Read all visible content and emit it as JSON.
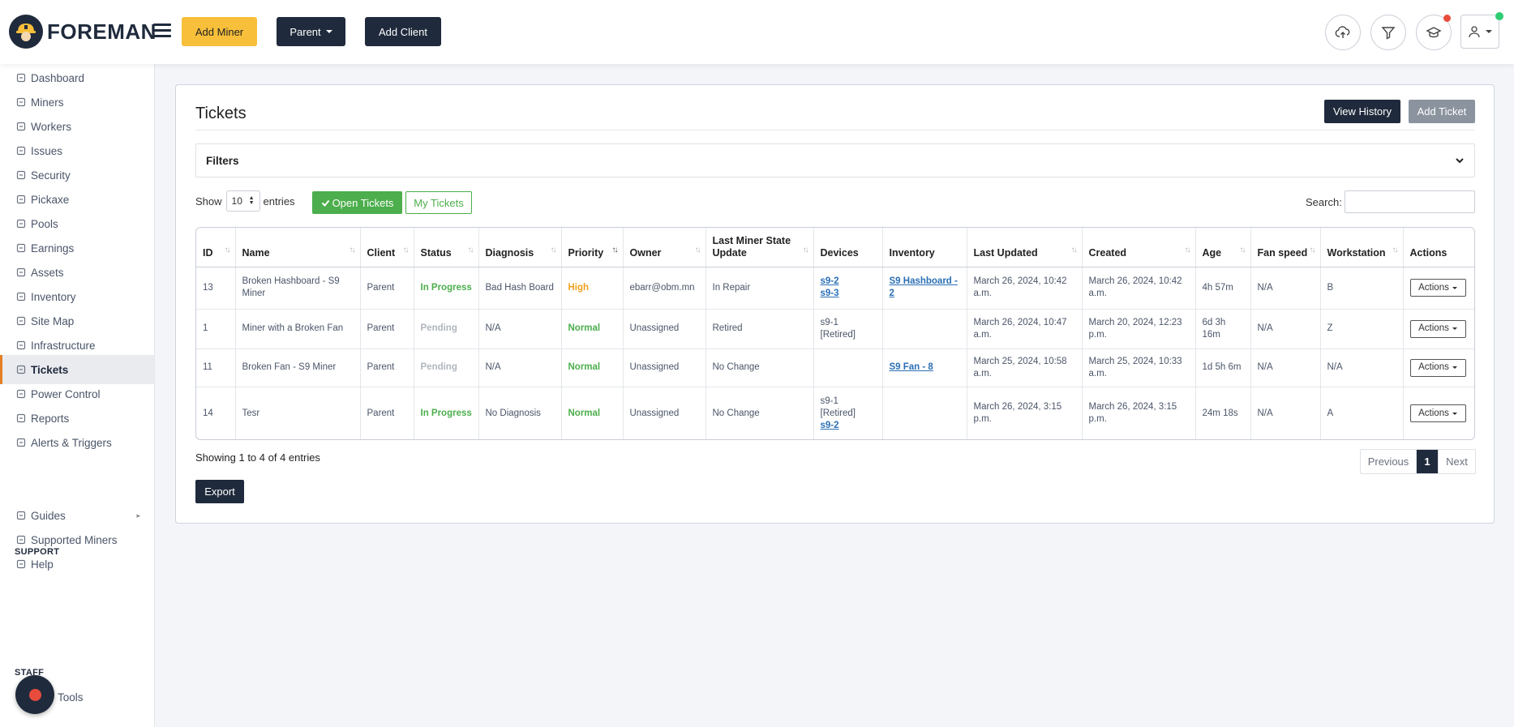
{
  "brand": {
    "name": "FOREMAN"
  },
  "header": {
    "add_miner": "Add Miner",
    "parent": "Parent",
    "add_client": "Add Client"
  },
  "sidebar": {
    "items": [
      {
        "label": "Dashboard",
        "icon": "dashboard-icon"
      },
      {
        "label": "Miners",
        "icon": "miners-icon"
      },
      {
        "label": "Workers",
        "icon": "workers-icon"
      },
      {
        "label": "Issues",
        "icon": "issues-icon"
      },
      {
        "label": "Security",
        "icon": "security-icon"
      },
      {
        "label": "Pickaxe",
        "icon": "pickaxe-icon"
      },
      {
        "label": "Pools",
        "icon": "pools-icon"
      },
      {
        "label": "Earnings",
        "icon": "earnings-icon"
      },
      {
        "label": "Assets",
        "icon": "assets-icon"
      },
      {
        "label": "Inventory",
        "icon": "inventory-icon"
      },
      {
        "label": "Site Map",
        "icon": "site-map-icon"
      },
      {
        "label": "Infrastructure",
        "icon": "infrastructure-icon"
      },
      {
        "label": "Tickets",
        "icon": "tickets-icon",
        "active": true
      },
      {
        "label": "Power Control",
        "icon": "power-icon"
      },
      {
        "label": "Reports",
        "icon": "reports-icon"
      },
      {
        "label": "Alerts & Triggers",
        "icon": "alerts-icon"
      }
    ],
    "support_heading": "SUPPORT",
    "support_items": [
      {
        "label": "Guides",
        "icon": "guides-icon"
      },
      {
        "label": "Supported Miners",
        "icon": "supported-miners-icon"
      },
      {
        "label": "Help",
        "icon": "help-icon"
      }
    ],
    "staff_heading": "STAFF",
    "staff_items": [
      {
        "label": "Tools",
        "icon": "tools-icon"
      }
    ]
  },
  "page": {
    "title": "Tickets",
    "view_history": "View History",
    "add_ticket": "Add Ticket",
    "filters_label": "Filters",
    "show_label": "Show",
    "entries_value": "10",
    "entries_label": "entries",
    "open_tickets": "Open Tickets",
    "my_tickets": "My Tickets",
    "search_label": "Search:",
    "search_value": "",
    "showing": "Showing 1 to 4 of 4 entries",
    "pager": {
      "previous": "Previous",
      "current": "1",
      "next": "Next"
    },
    "export": "Export"
  },
  "table": {
    "headers": [
      "ID",
      "Name",
      "Client",
      "Status",
      "Diagnosis",
      "Priority",
      "Owner",
      "Last Miner State Update",
      "Devices",
      "Inventory",
      "Last Updated",
      "Created",
      "Age",
      "Fan speed",
      "Workstation",
      "Actions"
    ],
    "rows": [
      {
        "id": "13",
        "name": "Broken Hashboard - S9 Miner",
        "client": "Parent",
        "status": "In Progress",
        "status_type": "progress",
        "diagnosis": "Bad Hash Board",
        "priority": "High",
        "priority_type": "high",
        "owner": "ebarr@obm.mn",
        "last_state": "In Repair",
        "devices": [
          {
            "text": "s9-2",
            "link": true
          },
          {
            "text": "s9-3",
            "link": true
          }
        ],
        "inventory": "S9 Hashboard - 2",
        "last_updated": "March 26, 2024, 10:42 a.m.",
        "created": "March 26, 2024, 10:42 a.m.",
        "age": "4h 57m",
        "fan_speed": "N/A",
        "workstation": "B",
        "actions": "Actions"
      },
      {
        "id": "1",
        "name": "Miner with a Broken Fan",
        "client": "Parent",
        "status": "Pending",
        "status_type": "pending",
        "diagnosis": "N/A",
        "priority": "Normal",
        "priority_type": "normal",
        "owner": "Unassigned",
        "last_state": "Retired",
        "devices": [
          {
            "text": "s9-1 [Retired]",
            "link": false
          }
        ],
        "inventory": "",
        "last_updated": "March 26, 2024, 10:47 a.m.",
        "created": "March 20, 2024, 12:23 p.m.",
        "age": "6d 3h 16m",
        "fan_speed": "N/A",
        "workstation": "Z",
        "actions": "Actions"
      },
      {
        "id": "11",
        "name": "Broken Fan - S9 Miner",
        "client": "Parent",
        "status": "Pending",
        "status_type": "pending",
        "diagnosis": "N/A",
        "priority": "Normal",
        "priority_type": "normal",
        "owner": "Unassigned",
        "last_state": "No Change",
        "devices": [],
        "inventory": "S9 Fan - 8",
        "last_updated": "March 25, 2024, 10:58 a.m.",
        "created": "March 25, 2024, 10:33 a.m.",
        "age": "1d 5h 6m",
        "fan_speed": "N/A",
        "workstation": "N/A",
        "actions": "Actions"
      },
      {
        "id": "14",
        "name": "Tesr",
        "client": "Parent",
        "status": "In Progress",
        "status_type": "progress",
        "diagnosis": "No Diagnosis",
        "priority": "Normal",
        "priority_type": "normal",
        "owner": "Unassigned",
        "last_state": "No Change",
        "devices": [
          {
            "text": "s9-1 [Retired]",
            "link": false
          },
          {
            "text": "s9-2",
            "link": true
          }
        ],
        "inventory": "",
        "last_updated": "March 26, 2024, 3:15 p.m.",
        "created": "March 26, 2024, 3:15 p.m.",
        "age": "24m 18s",
        "fan_speed": "N/A",
        "workstation": "A",
        "actions": "Actions"
      }
    ]
  },
  "colors": {
    "navy": "#1f2a3c",
    "yellow": "#f7bf3a",
    "green": "#4cae4c",
    "orange": "#f0a020",
    "accent": "#e67e22"
  }
}
